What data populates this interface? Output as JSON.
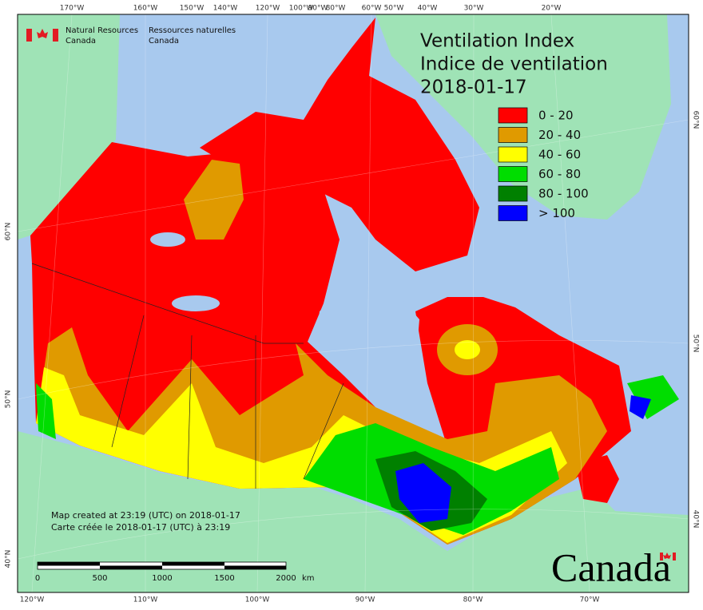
{
  "header": {
    "agency_en": [
      "Natural Resources",
      "Canada"
    ],
    "agency_fr": [
      "Ressources naturelles",
      "Canada"
    ]
  },
  "title": {
    "lines": [
      "Ventilation Index",
      "Indice de ventilation",
      "2018-01-17"
    ]
  },
  "legend": {
    "items": [
      {
        "label": "0 - 20",
        "color": "#ff0000"
      },
      {
        "label": "20 - 40",
        "color": "#e09a00"
      },
      {
        "label": "40 - 60",
        "color": "#ffff00"
      },
      {
        "label": "60 - 80",
        "color": "#00dd00"
      },
      {
        "label": "80 - 100",
        "color": "#008000"
      },
      {
        "label": "> 100",
        "color": "#0000ff"
      }
    ]
  },
  "graticule": {
    "top": [
      "170°W",
      "160°W",
      "150°W",
      "140°W",
      "120°W",
      "100°W",
      "90°W",
      "80°W",
      "60°W",
      "50°W",
      "40°W",
      "30°W",
      "20°W"
    ],
    "bottom": [
      "120°W",
      "110°W",
      "100°W",
      "90°W",
      "80°W",
      "70°W"
    ],
    "left": [
      "60°N",
      "50°N",
      "40°N"
    ],
    "right": [
      "60°N",
      "50°N",
      "40°N"
    ]
  },
  "scale_bar": {
    "labels": [
      "0",
      "500",
      "1000",
      "1500",
      "2000"
    ],
    "unit": "km"
  },
  "footnote": [
    "Map created at 23:19 (UTC) on 2018-01-17",
    "Carte créée le 2018-01-17 (UTC) à 23:19"
  ],
  "wordmark": "Canada"
}
